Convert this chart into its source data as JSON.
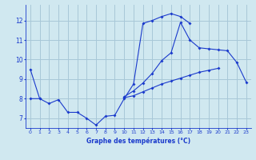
{
  "background_color": "#d0e8f0",
  "grid_color": "#a8c8d8",
  "line_color": "#1a3acc",
  "xlabel": "Graphe des températures (°C)",
  "x_hours": [
    0,
    1,
    2,
    3,
    4,
    5,
    6,
    7,
    8,
    9,
    10,
    11,
    12,
    13,
    14,
    15,
    16,
    17,
    18,
    19,
    20,
    21,
    22,
    23
  ],
  "ylim": [
    6.5,
    12.8
  ],
  "yticks": [
    7,
    8,
    9,
    10,
    11,
    12
  ],
  "line1": [
    9.5,
    8.0,
    7.75,
    7.95,
    7.3,
    7.3,
    7.0,
    6.65,
    7.1,
    7.15,
    8.0,
    8.75,
    11.85,
    12.0,
    12.2,
    12.35,
    12.2,
    11.85,
    null,
    null,
    null,
    null,
    null,
    null
  ],
  "line2": [
    8.0,
    8.0,
    null,
    null,
    null,
    null,
    null,
    null,
    null,
    null,
    8.05,
    8.15,
    8.35,
    8.55,
    8.75,
    8.9,
    9.05,
    9.2,
    9.35,
    9.45,
    9.55,
    null,
    null,
    null
  ],
  "line3": [
    null,
    null,
    null,
    null,
    null,
    null,
    null,
    null,
    null,
    null,
    8.1,
    8.4,
    8.8,
    9.3,
    9.95,
    10.35,
    11.9,
    11.0,
    10.6,
    10.55,
    10.5,
    10.45,
    9.85,
    8.85
  ]
}
